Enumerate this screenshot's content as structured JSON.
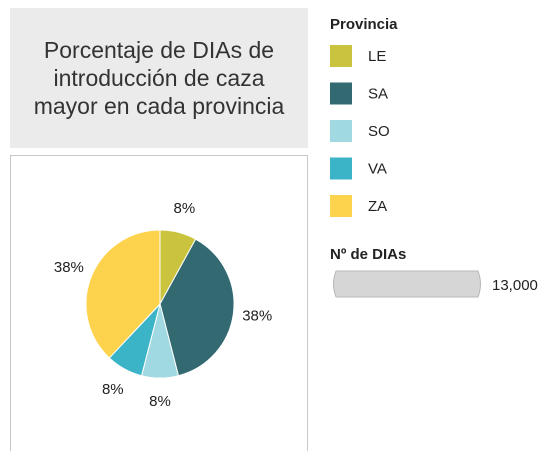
{
  "chart_data": {
    "type": "pie",
    "title": "Porcentaje de DIAs de introducción de caza mayor en cada provincia",
    "categories": [
      "LE",
      "SA",
      "SO",
      "VA",
      "ZA"
    ],
    "values": [
      8,
      38,
      8,
      8,
      38
    ],
    "value_labels": [
      "8%",
      "38%",
      "8%",
      "8%",
      "38%"
    ],
    "colors": [
      "#c9c33d",
      "#336a72",
      "#a0d9e1",
      "#3cb4c8",
      "#fdd34d"
    ],
    "legend_title": "Provincia",
    "size_legend": {
      "title": "Nº de DIAs",
      "ticks": [
        {
          "value": 13000,
          "label": "13,000"
        }
      ]
    }
  }
}
